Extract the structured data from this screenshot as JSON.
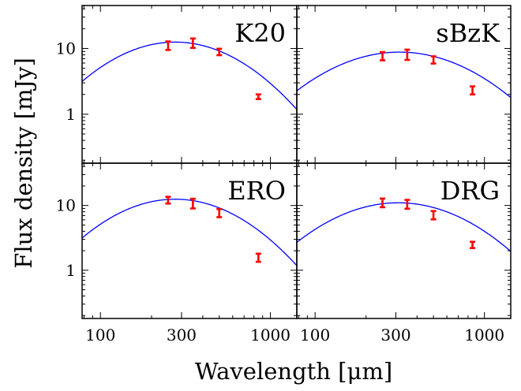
{
  "chart_data": {
    "type": "scatter",
    "xlabel": "Wavelength [μm]",
    "ylabel": "Flux density [mJy]",
    "xscale": "log",
    "yscale": "log",
    "xlim": [
      78,
      1430
    ],
    "ylim": [
      0.18,
      45
    ],
    "xticks": [
      100,
      300,
      1000
    ],
    "xtick_labels": [
      "100",
      "300",
      "1000"
    ],
    "yticks": [
      1,
      10
    ],
    "ytick_labels": [
      "1",
      "10"
    ],
    "grid": false,
    "legend": "none",
    "colors": {
      "model": "#0000ff",
      "data": "#ff0000",
      "axes": "#000000"
    },
    "panels": [
      {
        "label": "K20",
        "points": [
          {
            "x": 250,
            "y": 11.0,
            "ylo": 9.5,
            "yhi": 12.8
          },
          {
            "x": 350,
            "y": 12.0,
            "ylo": 10.2,
            "yhi": 14.2
          },
          {
            "x": 500,
            "y": 8.8,
            "ylo": 7.9,
            "yhi": 9.9
          },
          {
            "x": 850,
            "y": 1.85,
            "ylo": 1.7,
            "yhi": 2.0
          }
        ],
        "model": {
          "peak_x": 275,
          "peak_y": 12.5,
          "alpha": 2.0
        }
      },
      {
        "label": "sBzK",
        "points": [
          {
            "x": 250,
            "y": 7.6,
            "ylo": 6.6,
            "yhi": 8.8
          },
          {
            "x": 350,
            "y": 8.0,
            "ylo": 6.7,
            "yhi": 9.6
          },
          {
            "x": 500,
            "y": 6.7,
            "ylo": 5.9,
            "yhi": 7.6
          },
          {
            "x": 850,
            "y": 2.3,
            "ylo": 2.0,
            "yhi": 2.65
          }
        ],
        "model": {
          "peak_x": 315,
          "peak_y": 8.8,
          "alpha": 1.6
        }
      },
      {
        "label": "ERO",
        "points": [
          {
            "x": 250,
            "y": 12.0,
            "ylo": 10.7,
            "yhi": 13.6
          },
          {
            "x": 350,
            "y": 10.7,
            "ylo": 9.0,
            "yhi": 12.7
          },
          {
            "x": 500,
            "y": 7.6,
            "ylo": 6.6,
            "yhi": 8.8
          },
          {
            "x": 850,
            "y": 1.55,
            "ylo": 1.35,
            "yhi": 1.8
          }
        ],
        "model": {
          "peak_x": 275,
          "peak_y": 12.5,
          "alpha": 2.0
        }
      },
      {
        "label": "DRG",
        "points": [
          {
            "x": 250,
            "y": 11.0,
            "ylo": 9.4,
            "yhi": 12.8
          },
          {
            "x": 350,
            "y": 10.5,
            "ylo": 8.9,
            "yhi": 12.2
          },
          {
            "x": 500,
            "y": 7.1,
            "ylo": 6.1,
            "yhi": 8.2
          },
          {
            "x": 850,
            "y": 2.45,
            "ylo": 2.2,
            "yhi": 2.75
          }
        ],
        "model": {
          "peak_x": 310,
          "peak_y": 11.0,
          "alpha": 1.7
        }
      }
    ]
  }
}
